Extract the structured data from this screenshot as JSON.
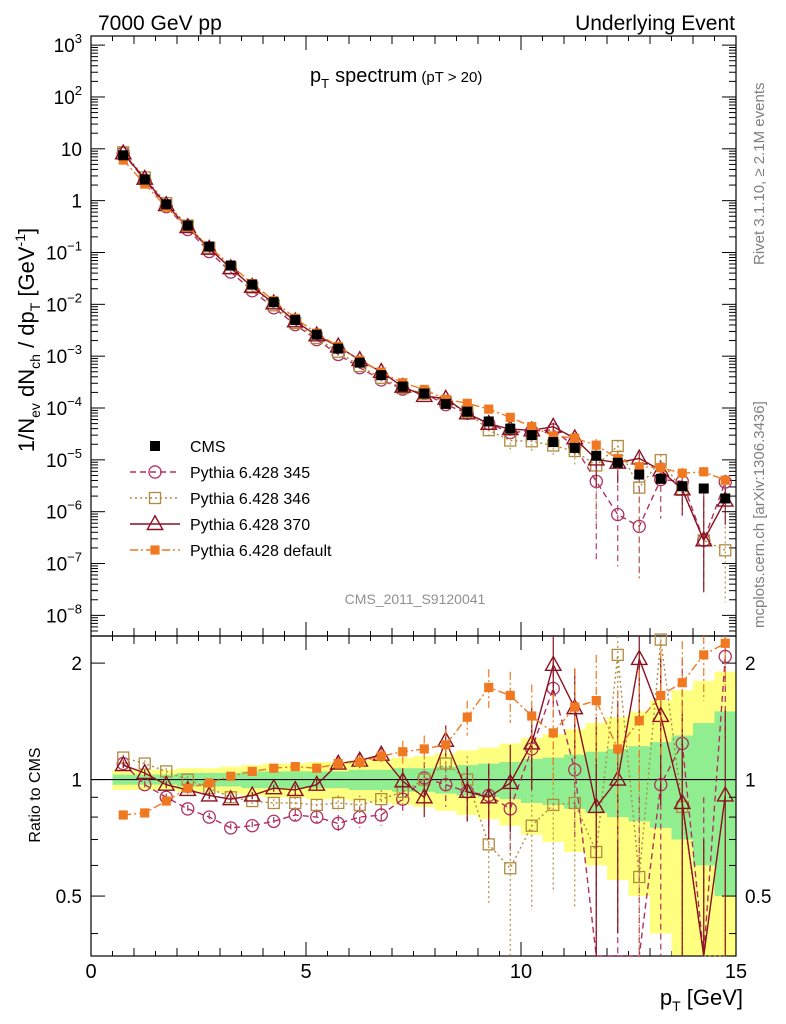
{
  "header": {
    "left": "7000 GeV pp",
    "right": "Underlying Event"
  },
  "side_labels": {
    "rivet": "Rivet 3.1.10, ≥ 2.1M events",
    "mcplots": "mcplots.cern.ch [arXiv:1306.3436]"
  },
  "chart_data": {
    "type": "scatter",
    "title_main": "p",
    "title_sub": "T",
    "title_rest": "spectrum",
    "title_cut": "(pT > 20)",
    "watermark": "CMS_2011_S9120041",
    "ylabel": "1/N_ev dN_ch / dp_T [GeV^-1]",
    "ylabel_parts": {
      "a": "1/N",
      "a_sub": "ev",
      "b": " dN",
      "b_sub": "ch",
      "c": " / dp",
      "c_sub": "T",
      "d": " [GeV",
      "d_sup": "-1",
      "e": "]"
    },
    "xlabel_main": "p",
    "xlabel_sub": "T",
    "xlabel_rest": " [GeV]",
    "ratio_ylabel": "Ratio to CMS",
    "xlim": [
      0,
      15
    ],
    "ylim_log": [
      4e-09,
      1500
    ],
    "ratio_ylim": [
      0.35,
      2.35
    ],
    "x_ticks": [
      "0",
      "5",
      "10",
      "15"
    ],
    "y_ticks": [
      {
        "base": "10",
        "exp": "3"
      },
      {
        "base": "10",
        "exp": "2"
      },
      {
        "base": "10",
        "exp": ""
      },
      {
        "base": "1",
        "exp": ""
      },
      {
        "base": "10",
        "exp": "−1"
      },
      {
        "base": "10",
        "exp": "−2"
      },
      {
        "base": "10",
        "exp": "−3"
      },
      {
        "base": "10",
        "exp": "−4"
      },
      {
        "base": "10",
        "exp": "−5"
      },
      {
        "base": "10",
        "exp": "−6"
      },
      {
        "base": "10",
        "exp": "−7"
      },
      {
        "base": "10",
        "exp": "−8"
      }
    ],
    "ratio_ticks": [
      "2",
      "1",
      "0.5"
    ],
    "legend_position": "bottom-left",
    "x": [
      0.75,
      1.25,
      1.75,
      2.25,
      2.75,
      3.25,
      3.75,
      4.25,
      4.75,
      5.25,
      5.75,
      6.25,
      6.75,
      7.25,
      7.75,
      8.25,
      8.75,
      9.25,
      9.75,
      10.25,
      10.75,
      11.25,
      11.75,
      12.25,
      12.75,
      13.25,
      13.75,
      14.25,
      14.75
    ],
    "cms": [
      7.5,
      2.55,
      0.85,
      0.33,
      0.13,
      0.056,
      0.024,
      0.011,
      0.005,
      0.0026,
      0.0014,
      0.00075,
      0.00043,
      0.00026,
      0.00019,
      0.00012,
      8.5e-05,
      5.5e-05,
      4e-05,
      3e-05,
      2.2e-05,
      1.7e-05,
      1.2e-05,
      8.8e-06,
      5.2e-06,
      4.3e-06,
      3.1e-06,
      2.8e-06,
      1.8e-06
    ],
    "band_inner": [
      0.03,
      0.03,
      0.03,
      0.04,
      0.04,
      0.04,
      0.05,
      0.05,
      0.05,
      0.05,
      0.05,
      0.06,
      0.06,
      0.07,
      0.07,
      0.08,
      0.09,
      0.1,
      0.11,
      0.13,
      0.14,
      0.16,
      0.18,
      0.2,
      0.22,
      0.25,
      0.3,
      0.4,
      0.5
    ],
    "band_outer": [
      0.06,
      0.06,
      0.06,
      0.07,
      0.07,
      0.08,
      0.09,
      0.1,
      0.1,
      0.11,
      0.11,
      0.12,
      0.13,
      0.14,
      0.15,
      0.17,
      0.19,
      0.21,
      0.24,
      0.28,
      0.31,
      0.35,
      0.4,
      0.45,
      0.5,
      0.6,
      0.7,
      0.8,
      0.9
    ],
    "series": [
      {
        "name": "Pythia 6.428 345",
        "color": "#b03060",
        "dash": "6,4",
        "marker": "circle",
        "ratio": [
          1.1,
          0.97,
          0.9,
          0.84,
          0.8,
          0.75,
          0.76,
          0.78,
          0.81,
          0.8,
          0.77,
          0.8,
          0.81,
          0.89,
          1.01,
          0.97,
          0.93,
          0.91,
          0.84,
          1.2,
          1.72,
          1.06,
          0.32,
          0.1,
          0.1,
          0.97,
          1.24,
          0.1,
          2.08
        ],
        "err": [
          0.02,
          0.02,
          0.02,
          0.02,
          0.02,
          0.02,
          0.02,
          0.02,
          0.03,
          0.03,
          0.04,
          0.05,
          0.05,
          0.08,
          0.1,
          0.12,
          0.15,
          0.15,
          0.2,
          0.25,
          0.3,
          0.35,
          0.8,
          0.8,
          0.8,
          0.8,
          0.8,
          0.8,
          0.8
        ]
      },
      {
        "name": "Pythia 6.428 346",
        "color": "#b08a40",
        "dash": "2,3",
        "marker": "square",
        "ratio": [
          1.14,
          1.1,
          1.05,
          1.0,
          0.95,
          0.9,
          0.88,
          0.87,
          0.87,
          0.86,
          0.87,
          0.86,
          0.89,
          0.93,
          1.0,
          1.1,
          1.0,
          0.68,
          0.59,
          0.76,
          0.86,
          0.87,
          0.65,
          2.1,
          0.56,
          2.3,
          0.85,
          0.1,
          0.1
        ],
        "err": [
          0.02,
          0.02,
          0.02,
          0.02,
          0.02,
          0.02,
          0.02,
          0.02,
          0.03,
          0.03,
          0.04,
          0.05,
          0.05,
          0.08,
          0.1,
          0.12,
          0.15,
          0.2,
          0.25,
          0.3,
          0.35,
          0.4,
          0.6,
          0.6,
          0.6,
          0.6,
          0.6,
          0.6,
          0.6
        ]
      },
      {
        "name": "Pythia 6.428 370",
        "color": "#8b1020",
        "dash": "",
        "marker": "triangle",
        "ratio": [
          1.09,
          1.04,
          0.97,
          0.94,
          0.91,
          0.89,
          0.91,
          0.95,
          0.94,
          0.97,
          1.1,
          1.12,
          1.16,
          0.99,
          0.9,
          1.26,
          0.93,
          0.9,
          0.98,
          1.24,
          1.98,
          1.53,
          0.85,
          1.0,
          2.05,
          1.46,
          0.87,
          0.1,
          0.91
        ],
        "err": [
          0.02,
          0.02,
          0.02,
          0.02,
          0.02,
          0.02,
          0.02,
          0.02,
          0.03,
          0.03,
          0.04,
          0.05,
          0.05,
          0.08,
          0.1,
          0.12,
          0.15,
          0.2,
          0.25,
          0.3,
          0.4,
          0.4,
          0.6,
          0.6,
          0.6,
          0.6,
          0.6,
          0.6,
          0.6
        ]
      },
      {
        "name": "Pythia 6.428 default",
        "color": "#f07820",
        "dash": "8,3,2,3",
        "marker": "filled-square",
        "ratio": [
          0.81,
          0.82,
          0.88,
          0.95,
          0.98,
          1.02,
          1.05,
          1.07,
          1.08,
          1.07,
          1.1,
          1.11,
          1.15,
          1.18,
          1.2,
          1.23,
          1.45,
          1.73,
          1.65,
          1.46,
          1.32,
          1.54,
          1.6,
          1.2,
          1.42,
          1.65,
          1.78,
          2.1,
          2.25
        ],
        "err": [
          0.02,
          0.02,
          0.02,
          0.02,
          0.02,
          0.02,
          0.02,
          0.02,
          0.03,
          0.03,
          0.04,
          0.05,
          0.05,
          0.08,
          0.1,
          0.12,
          0.15,
          0.2,
          0.25,
          0.3,
          0.35,
          0.4,
          0.5,
          0.5,
          0.5,
          0.5,
          0.5,
          0.5,
          0.5
        ]
      }
    ],
    "legend": [
      {
        "label": "CMS",
        "marker": "cms"
      },
      {
        "label": "Pythia 6.428 345",
        "series": 0
      },
      {
        "label": "Pythia 6.428 346",
        "series": 1
      },
      {
        "label": "Pythia 6.428 370",
        "series": 2
      },
      {
        "label": "Pythia 6.428 default",
        "series": 3
      }
    ],
    "colors": {
      "band_inner": "#90ee90",
      "band_outer": "#ffff80",
      "cms": "#000000",
      "side_text": "#808080",
      "watermark": "#909090"
    }
  }
}
